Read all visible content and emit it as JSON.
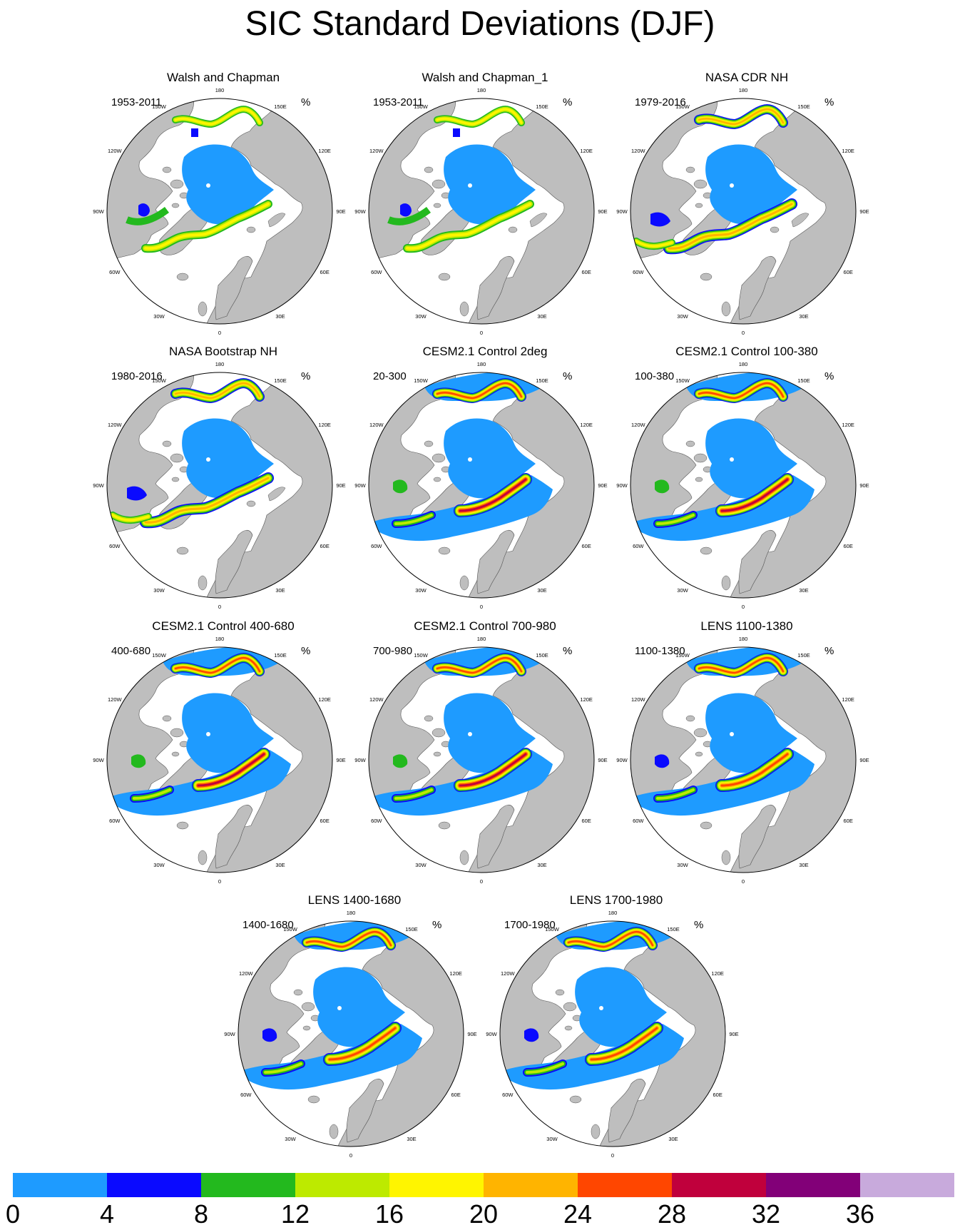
{
  "title": "SIC Standard Deviations (DJF)",
  "units": "%",
  "colorbar": {
    "colors": [
      "#1e9bff",
      "#0a0aff",
      "#23b91e",
      "#bdea00",
      "#fff500",
      "#ffb400",
      "#ff4600",
      "#c0003c",
      "#820078",
      "#c8aadc"
    ],
    "labels": [
      "0",
      "4",
      "8",
      "12",
      "16",
      "20",
      "24",
      "28",
      "32",
      "36"
    ]
  },
  "ocean_color": "#ffffff",
  "land_color": "#bebebe",
  "lon_labels": [
    "180",
    "150E",
    "120E",
    "90E",
    "60E",
    "30E",
    "0",
    "30W",
    "60W",
    "90W",
    "120W",
    "150W"
  ],
  "panels": [
    {
      "title": "Walsh and Chapman",
      "period": "1953-2011",
      "units": "%",
      "style": "obs-wc"
    },
    {
      "title": "Walsh and Chapman_1",
      "period": "1953-2011",
      "units": "%",
      "style": "obs-wc"
    },
    {
      "title": "NASA CDR NH",
      "period": "1979-2016",
      "units": "%",
      "style": "obs-nasa"
    },
    {
      "title": "NASA Bootstrap NH",
      "period": "1980-2016",
      "units": "%",
      "style": "obs-nasa"
    },
    {
      "title": "CESM2.1 Control 2deg",
      "period": "20-300",
      "units": "%",
      "style": "model"
    },
    {
      "title": "CESM2.1 Control 100-380",
      "period": "100-380",
      "units": "%",
      "style": "model"
    },
    {
      "title": "CESM2.1 Control 400-680",
      "period": "400-680",
      "units": "%",
      "style": "model"
    },
    {
      "title": "CESM2.1 Control 700-980",
      "period": "700-980",
      "units": "%",
      "style": "model"
    },
    {
      "title": "LENS 1100-1380",
      "period": "1100-1380",
      "units": "%",
      "style": "lens"
    },
    {
      "title": "LENS 1400-1680",
      "period": "1400-1680",
      "units": "%",
      "style": "lens"
    },
    {
      "title": "LENS 1700-1980",
      "period": "1700-1980",
      "units": "%",
      "style": "lens"
    }
  ]
}
